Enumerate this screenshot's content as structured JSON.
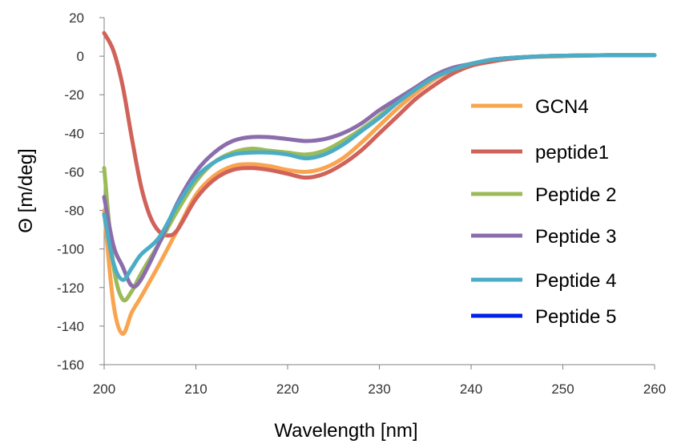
{
  "chart_data": {
    "type": "line",
    "xlabel": "Wavelength [nm]",
    "ylabel": "Θ [m/deg]",
    "xlim": [
      200,
      260
    ],
    "ylim": [
      -160,
      20
    ],
    "x_ticks": [
      200,
      210,
      220,
      230,
      240,
      250,
      260
    ],
    "y_ticks": [
      20,
      0,
      -20,
      -40,
      -60,
      -80,
      -100,
      -120,
      -140,
      -160
    ],
    "grid": false,
    "legend_position": "right",
    "series": [
      {
        "name": "GCN4",
        "color": "#F9A44F",
        "points": [
          [
            200,
            -80
          ],
          [
            201,
            -128
          ],
          [
            202,
            -144
          ],
          [
            203,
            -133
          ],
          [
            204,
            -125
          ],
          [
            206,
            -108
          ],
          [
            208,
            -90
          ],
          [
            210,
            -72
          ],
          [
            212,
            -62
          ],
          [
            214,
            -57
          ],
          [
            216,
            -56
          ],
          [
            218,
            -57
          ],
          [
            220,
            -59
          ],
          [
            222,
            -60
          ],
          [
            224,
            -58
          ],
          [
            226,
            -53
          ],
          [
            228,
            -45
          ],
          [
            230,
            -36
          ],
          [
            232,
            -27
          ],
          [
            234,
            -19
          ],
          [
            236,
            -12
          ],
          [
            238,
            -7
          ],
          [
            240,
            -4
          ],
          [
            242,
            -2
          ],
          [
            244,
            -1
          ],
          [
            246,
            -0.5
          ],
          [
            250,
            0
          ],
          [
            255,
            0.5
          ],
          [
            260,
            0.5
          ]
        ]
      },
      {
        "name": "peptide1",
        "color": "#D0625A",
        "points": [
          [
            200,
            12
          ],
          [
            201,
            3
          ],
          [
            202,
            -15
          ],
          [
            203,
            -42
          ],
          [
            204,
            -67
          ],
          [
            205,
            -83
          ],
          [
            206,
            -91
          ],
          [
            207,
            -93
          ],
          [
            208,
            -90
          ],
          [
            210,
            -74
          ],
          [
            212,
            -64
          ],
          [
            214,
            -59
          ],
          [
            216,
            -58
          ],
          [
            218,
            -59
          ],
          [
            220,
            -61
          ],
          [
            222,
            -63
          ],
          [
            224,
            -61
          ],
          [
            226,
            -56
          ],
          [
            228,
            -49
          ],
          [
            230,
            -40
          ],
          [
            232,
            -31
          ],
          [
            234,
            -22
          ],
          [
            236,
            -15
          ],
          [
            238,
            -9
          ],
          [
            240,
            -5
          ],
          [
            242,
            -3
          ],
          [
            244,
            -1.5
          ],
          [
            248,
            0
          ],
          [
            255,
            0.5
          ],
          [
            260,
            0.5
          ]
        ]
      },
      {
        "name": "Peptide 2",
        "color": "#9BBB59",
        "points": [
          [
            200,
            -58
          ],
          [
            201,
            -108
          ],
          [
            202,
            -126
          ],
          [
            203,
            -122
          ],
          [
            204,
            -113
          ],
          [
            206,
            -97
          ],
          [
            208,
            -80
          ],
          [
            210,
            -65
          ],
          [
            212,
            -55
          ],
          [
            214,
            -50
          ],
          [
            216,
            -48
          ],
          [
            218,
            -49
          ],
          [
            220,
            -50
          ],
          [
            222,
            -51
          ],
          [
            224,
            -49
          ],
          [
            226,
            -44
          ],
          [
            228,
            -38
          ],
          [
            230,
            -31
          ],
          [
            232,
            -23
          ],
          [
            234,
            -17
          ],
          [
            236,
            -11
          ],
          [
            238,
            -7
          ],
          [
            240,
            -4
          ],
          [
            242,
            -2
          ],
          [
            244,
            -1
          ],
          [
            248,
            0
          ],
          [
            255,
            0.5
          ],
          [
            260,
            0.5
          ]
        ]
      },
      {
        "name": "Peptide 3",
        "color": "#8C6DAB",
        "points": [
          [
            200,
            -73
          ],
          [
            201,
            -98
          ],
          [
            202,
            -109
          ],
          [
            203,
            -119
          ],
          [
            204,
            -116
          ],
          [
            206,
            -97
          ],
          [
            208,
            -76
          ],
          [
            210,
            -60
          ],
          [
            212,
            -50
          ],
          [
            214,
            -44
          ],
          [
            216,
            -42
          ],
          [
            218,
            -42
          ],
          [
            220,
            -43
          ],
          [
            222,
            -44
          ],
          [
            224,
            -43
          ],
          [
            226,
            -40
          ],
          [
            228,
            -35
          ],
          [
            230,
            -28
          ],
          [
            232,
            -22
          ],
          [
            234,
            -16
          ],
          [
            236,
            -10
          ],
          [
            238,
            -6
          ],
          [
            240,
            -4
          ],
          [
            242,
            -2
          ],
          [
            244,
            -1
          ],
          [
            248,
            0
          ],
          [
            255,
            0.5
          ],
          [
            260,
            0.5
          ]
        ]
      },
      {
        "name": "Peptide 4",
        "color": "#4BACC6",
        "points": [
          [
            200,
            -82
          ],
          [
            201,
            -107
          ],
          [
            202,
            -116
          ],
          [
            203,
            -110
          ],
          [
            204,
            -103
          ],
          [
            206,
            -94
          ],
          [
            208,
            -77
          ],
          [
            210,
            -63
          ],
          [
            212,
            -55
          ],
          [
            214,
            -51
          ],
          [
            216,
            -50
          ],
          [
            218,
            -50
          ],
          [
            220,
            -51
          ],
          [
            222,
            -53
          ],
          [
            224,
            -51
          ],
          [
            226,
            -46
          ],
          [
            228,
            -39
          ],
          [
            230,
            -32
          ],
          [
            232,
            -24
          ],
          [
            234,
            -17
          ],
          [
            236,
            -11
          ],
          [
            238,
            -7
          ],
          [
            240,
            -4
          ],
          [
            242,
            -2
          ],
          [
            244,
            -1
          ],
          [
            248,
            0
          ],
          [
            255,
            0.5
          ],
          [
            260,
            0.5
          ]
        ]
      },
      {
        "name": "Peptide 5",
        "color": "#0022E8",
        "points": []
      }
    ]
  }
}
